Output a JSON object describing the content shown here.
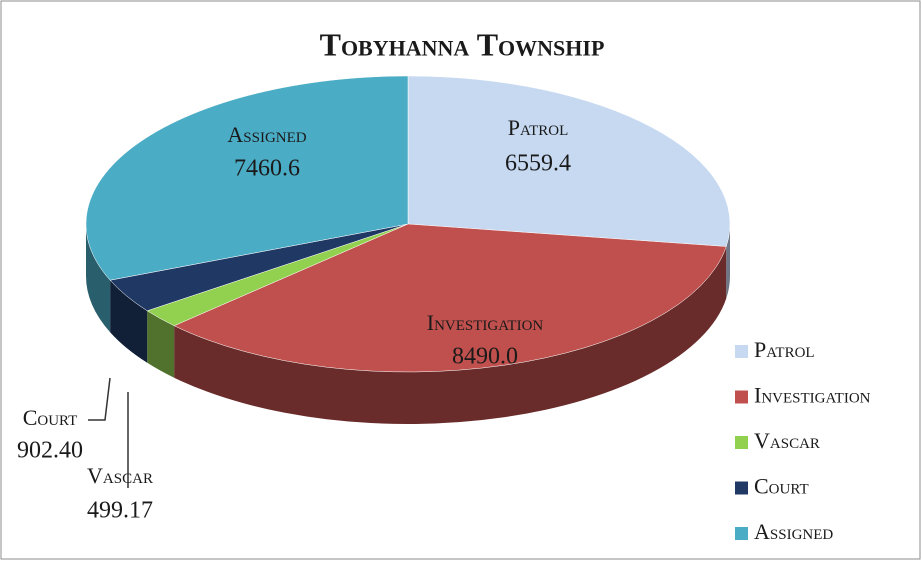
{
  "chart_data": {
    "type": "pie",
    "title": "Tobyhanna Township",
    "categories": [
      "Patrol",
      "Investigation",
      "Vascar",
      "Court",
      "Assigned"
    ],
    "values": [
      6559.4,
      8490.0,
      499.17,
      902.4,
      7460.6
    ],
    "value_labels": [
      "6559.4",
      "8490.0",
      "499.17",
      "902.40",
      "7460.6"
    ],
    "colors": [
      "#c6d9f1",
      "#c0504d",
      "#92d050",
      "#1f3864",
      "#4bacc6"
    ],
    "legend": "right"
  }
}
